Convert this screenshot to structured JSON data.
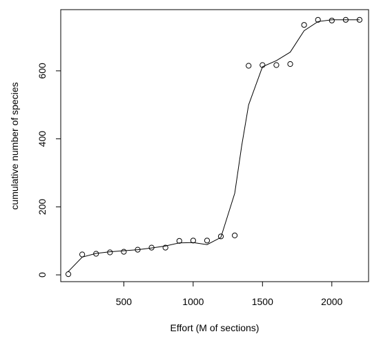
{
  "chart_data": {
    "type": "scatter",
    "xlabel": "Effort (M of sections)",
    "ylabel": "cumulative number of species",
    "xlim": [
      45,
      2265
    ],
    "ylim": [
      -20,
      780
    ],
    "xticks": [
      500,
      1000,
      1500,
      2000
    ],
    "yticks": [
      0,
      200,
      400,
      600
    ],
    "grid": false,
    "legend": "none",
    "series": [
      {
        "kind": "points",
        "marker": "open-circle",
        "x": [
          100,
          200,
          300,
          400,
          500,
          600,
          700,
          800,
          900,
          1000,
          1100,
          1200,
          1300,
          1400,
          1500,
          1600,
          1700,
          1800,
          1900,
          2000,
          2100,
          2200
        ],
        "y": [
          2,
          60,
          62,
          66,
          68,
          74,
          80,
          80,
          100,
          101,
          101,
          113,
          116,
          615,
          617,
          617,
          620,
          735,
          750,
          748,
          750,
          750
        ]
      },
      {
        "kind": "smoothed-line",
        "x": [
          100,
          200,
          300,
          400,
          500,
          600,
          700,
          800,
          900,
          1000,
          1100,
          1200,
          1300,
          1350,
          1400,
          1500,
          1600,
          1700,
          1800,
          1900,
          2000,
          2100,
          2200
        ],
        "y": [
          10,
          52,
          63,
          68,
          71,
          74,
          79,
          85,
          94,
          95,
          89,
          110,
          240,
          380,
          500,
          612,
          630,
          655,
          718,
          745,
          750,
          750,
          750
        ]
      }
    ]
  },
  "colors": {
    "axis": "#000000",
    "marker": "#000000",
    "line": "#000000",
    "background": "#ffffff"
  }
}
